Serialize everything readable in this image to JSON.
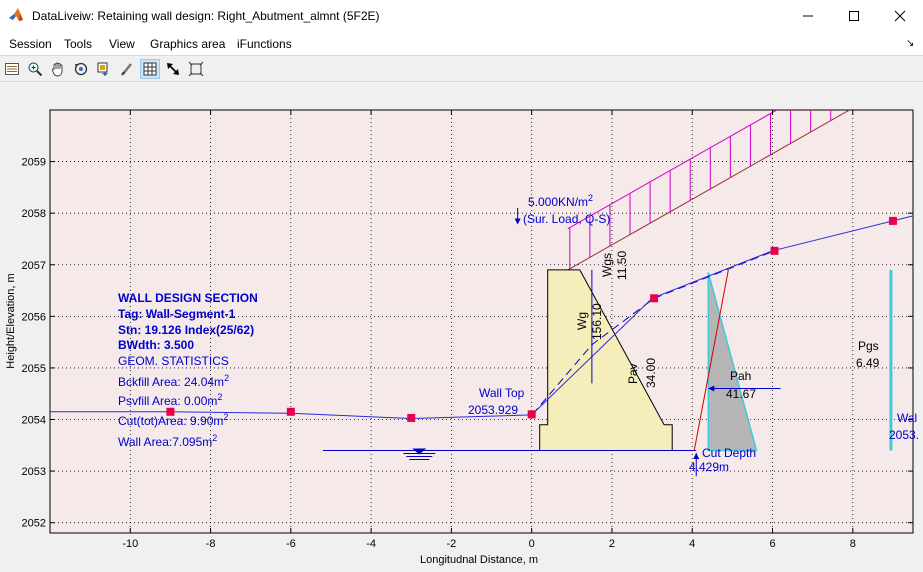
{
  "window": {
    "title": "DataLiveiw: Retaining wall design: Right_Abutment_almnt (5F2E)"
  },
  "menu": {
    "items": [
      "Session",
      "Tools",
      "View",
      "Graphics area",
      "iFunctions"
    ]
  },
  "toolbar": {
    "tools": [
      "data-cursor",
      "zoom-in",
      "pan",
      "rotate-3d",
      "insert-colorbar",
      "edit-brush",
      "grid",
      "pointer-arrow",
      "fit-axes"
    ],
    "active_tool": "grid"
  },
  "colors": {
    "plot_bg": "#f5e9ea",
    "wall_fill": "#f5eebb",
    "surcharge": "#cc00cc",
    "annotation_blue": "#0000cc",
    "ground_line": "#2a2ad9",
    "marker": "#e8004f",
    "backfill_line": "#993333",
    "active_pressure": "#b7b4b8",
    "cyan_bar": "#3fcbd6"
  },
  "chart_data": {
    "type": "line",
    "title": "",
    "xlabel": "Longitudnal Distance, m",
    "ylabel": "Height/Elevation, m",
    "xlim": [
      -12,
      9.5
    ],
    "ylim": [
      2051.8,
      2060
    ],
    "xticks": [
      -10,
      -8,
      -6,
      -4,
      -2,
      0,
      2,
      4,
      6,
      8
    ],
    "xtick_labels": [
      "-10",
      "-8",
      "-6",
      "-4",
      "-2",
      "0",
      "2",
      "4",
      "6",
      "8"
    ],
    "yticks": [
      2052,
      2053,
      2054,
      2055,
      2056,
      2057,
      2058,
      2059
    ],
    "ytick_labels": [
      "2052",
      "2053",
      "2054",
      "2055",
      "2056",
      "2057",
      "2058",
      "2059"
    ],
    "grid": true,
    "ground_profile": {
      "x": [
        -12,
        -9,
        -6,
        -3,
        0,
        3,
        6,
        9,
        9.5
      ],
      "y": [
        2054.15,
        2054.15,
        2054.12,
        2054.02,
        2054.09,
        2056.35,
        2057.27,
        2057.85,
        2057.95
      ]
    },
    "markers": {
      "x": [
        -9,
        -6,
        -3,
        0,
        3.05,
        6.05,
        9.0
      ],
      "y": [
        2054.15,
        2054.15,
        2054.03,
        2054.1,
        2056.35,
        2057.27,
        2057.85
      ]
    },
    "wall_section": {
      "x": [
        0,
        0.2,
        0.2,
        0.4,
        0.4,
        0.95,
        1.2,
        3.3,
        3.5,
        3.5,
        0
      ],
      "y": [
        2053.4,
        2053.4,
        2053.9,
        2053.9,
        2056.9,
        2056.9,
        2056.9,
        2053.9,
        2053.9,
        2053.4,
        2053.4
      ]
    },
    "surcharge_band": {
      "x_start": 0.9,
      "x_end": 9.5,
      "base_y_start": 2056.9,
      "base_y_end": 2060.7,
      "top_y_start": 2057.7,
      "top_y_end": 2061.5,
      "hatch_x": [
        0.95,
        1.45,
        1.95,
        2.45,
        2.95,
        3.45,
        3.95,
        4.45,
        4.95,
        5.45,
        5.95,
        6.45,
        6.95,
        7.45,
        7.95,
        8.45,
        8.95
      ]
    },
    "backfill_cut_line": {
      "x": [
        4.05,
        4.9
      ],
      "y": [
        2053.4,
        2056.9
      ]
    },
    "backfill_dashed_line": {
      "x": [
        0.02,
        1.5,
        3.05,
        6.05
      ],
      "y": [
        2054.1,
        2055.45,
        2056.35,
        2057.27
      ]
    },
    "pressure_triangle": {
      "x": [
        4.4,
        4.4,
        5.6
      ],
      "y": [
        2056.85,
        2053.4,
        2053.4
      ]
    },
    "cyan_bar": {
      "x": 8.95,
      "y": [
        2053.4,
        2056.9
      ]
    },
    "base_line": {
      "x": [
        -5.2,
        4.1
      ],
      "y": [
        2053.4,
        2053.4
      ]
    },
    "water_symbol": {
      "x": -2.8,
      "y": 2053.4
    },
    "vertical_arrow_wg": {
      "x": 1.5,
      "y": [
        2054.7,
        2056.9
      ]
    },
    "pah_arrow": {
      "x": [
        4.4,
        6.2
      ],
      "y": 2054.6
    },
    "surcharge_arrow": {
      "x": -0.35,
      "y": [
        2057.8,
        2058.1
      ]
    },
    "cut_depth_arrow": {
      "x": 4.1,
      "y": [
        2052.9,
        2053.35
      ]
    },
    "annotations": {
      "section_title": "WALL DESIGN SECTION",
      "tag": "Tag: Wall-Segment-1",
      "stn": "Stn: 19.126 Index(25/62)",
      "bwdth": "BWdth: 3.500",
      "geom_stats": "GEOM. STATISTICS",
      "bckfill_area": "Bckfill Area: 24.04m",
      "psvfill_area": "Psvfill Area: 0.00m",
      "cut_area": "Cut(tot)Area: 9.90m",
      "wall_area": "Wall Area:7.095m",
      "sq_sup": "2",
      "surcharge_value": "5.000KN/m",
      "surcharge_label": "(Sur. Load, Q-S)",
      "wgs_label": "Wgs",
      "wgs_value": "11.50",
      "wg_label": "Wg",
      "wg_value": "156.10",
      "pav_label": "Pav",
      "pav_value": "34.00",
      "wall_top_label": "Wall Top",
      "wall_top_value": "2053.929",
      "pah_label": "Pah",
      "pah_value": "41.67",
      "pgs_label": "Pgs",
      "pgs_value": "6.49",
      "cut_depth_label": "Cut Depth",
      "cut_depth_value": "4.429m",
      "wal_label": "Wal",
      "wal_value": "2053."
    }
  }
}
